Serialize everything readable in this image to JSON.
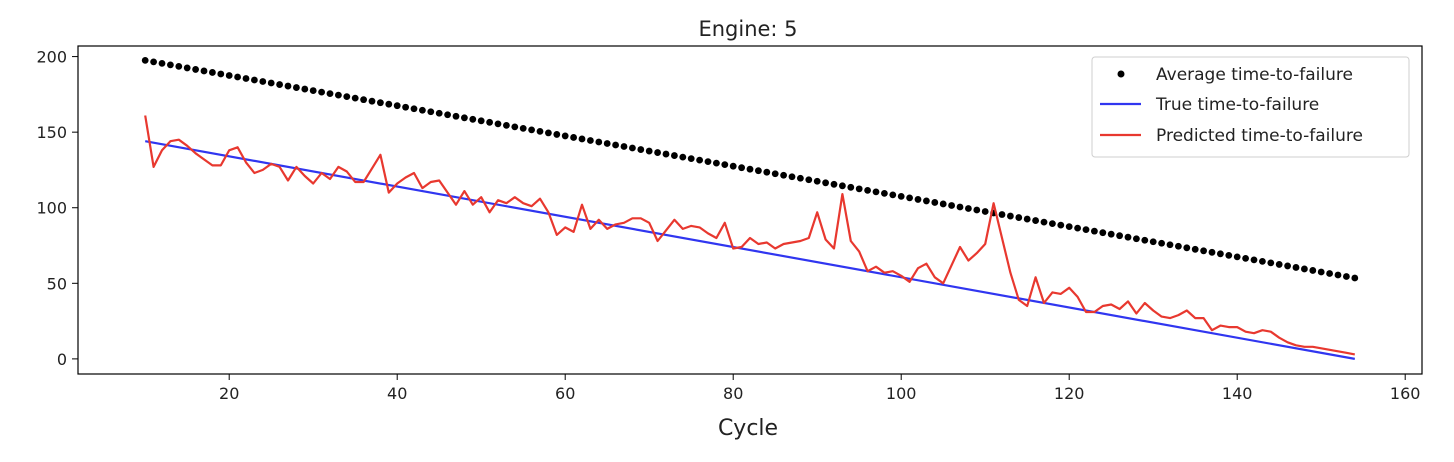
{
  "chart_data": {
    "type": "line",
    "title": "Engine: 5",
    "xlabel": "Cycle",
    "ylabel": "",
    "xlim": [
      2,
      162
    ],
    "ylim": [
      -10,
      207
    ],
    "xticks": [
      20,
      40,
      60,
      80,
      100,
      120,
      140,
      160
    ],
    "yticks": [
      0,
      50,
      100,
      150,
      200
    ],
    "grid": false,
    "legend_position": "top-right",
    "legend": [
      "Average time-to-failure",
      "True time-to-failure",
      "Predicted time-to-failure"
    ],
    "colors": {
      "average": "#000000",
      "true": "#3036f0",
      "predicted": "#e8382f"
    },
    "x_range": [
      10,
      154
    ],
    "series": [
      {
        "name": "Average time-to-failure",
        "kind": "scatter",
        "y_start": 197.5,
        "y_end": 53.5
      },
      {
        "name": "True time-to-failure",
        "kind": "line",
        "y_start": 144,
        "y_end": 0
      },
      {
        "name": "Predicted time-to-failure",
        "kind": "line",
        "values": [
          161,
          127,
          138,
          144,
          145,
          141,
          136,
          132,
          128,
          128,
          138,
          140,
          130,
          123,
          125,
          129,
          127,
          118,
          127,
          121,
          116,
          123,
          119,
          127,
          124,
          117,
          117,
          126,
          135,
          110,
          116,
          120,
          123,
          113,
          117,
          118,
          110,
          102,
          111,
          102,
          107,
          97,
          105,
          103,
          107,
          103,
          101,
          106,
          97,
          82,
          87,
          84,
          102,
          86,
          92,
          86,
          89,
          90,
          93,
          93,
          90,
          78,
          85,
          92,
          86,
          88,
          87,
          83,
          80,
          90,
          73,
          74,
          80,
          76,
          77,
          73,
          76,
          77,
          78,
          80,
          97,
          79,
          73,
          109,
          78,
          71,
          58,
          61,
          57,
          58,
          55,
          51,
          60,
          63,
          54,
          50,
          62,
          74,
          65,
          70,
          76,
          103,
          80,
          57,
          39,
          35,
          54,
          37,
          44,
          43,
          47,
          41,
          31,
          31,
          35,
          36,
          33,
          38,
          30,
          37,
          32,
          28,
          27,
          29,
          32,
          27,
          27,
          19,
          22,
          21,
          21,
          18,
          17,
          19,
          18,
          14,
          11,
          9,
          8,
          8,
          7,
          6,
          5,
          4,
          3
        ]
      }
    ]
  }
}
